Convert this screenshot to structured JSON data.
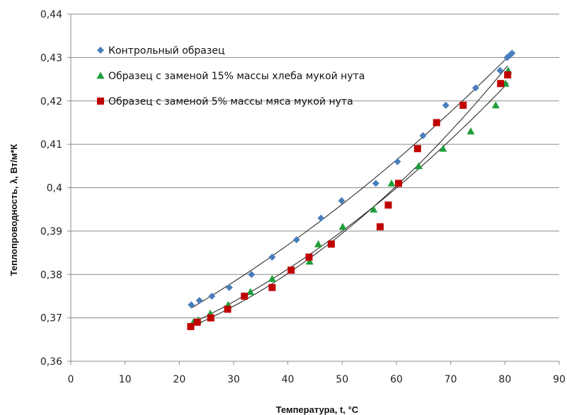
{
  "chart_data": {
    "type": "scatter",
    "title": "",
    "xlabel": "Температура, t, °C",
    "ylabel": "Теплопроводность, λ, Вт/м*К",
    "xlim": [
      0,
      90
    ],
    "ylim": [
      0.36,
      0.44
    ],
    "x_ticks": [
      0,
      10,
      20,
      30,
      40,
      50,
      60,
      70,
      80,
      90
    ],
    "x_tick_labels": [
      "0",
      "10",
      "20",
      "30",
      "40",
      "50",
      "60",
      "70",
      "80",
      "90"
    ],
    "y_ticks": [
      0.36,
      0.37,
      0.38,
      0.39,
      0.4,
      0.41,
      0.42,
      0.43,
      0.44
    ],
    "y_tick_labels": [
      "0,36",
      "0,37",
      "0,38",
      "0,39",
      "0,4",
      "0,41",
      "0,42",
      "0,43",
      "0,44"
    ],
    "grid": "horizontal",
    "legend_position": "top-left",
    "series": [
      {
        "name": "Контрольный образец",
        "marker": "diamond",
        "color": "#4a7ebb",
        "points": [
          [
            22.2,
            0.373
          ],
          [
            23.7,
            0.374
          ],
          [
            26,
            0.375
          ],
          [
            29.2,
            0.377
          ],
          [
            33.3,
            0.38
          ],
          [
            37.1,
            0.384
          ],
          [
            41.6,
            0.388
          ],
          [
            46.1,
            0.393
          ],
          [
            49.9,
            0.397
          ],
          [
            56.2,
            0.401
          ],
          [
            60.2,
            0.406
          ],
          [
            64.9,
            0.412
          ],
          [
            69.1,
            0.419
          ],
          [
            74.6,
            0.423
          ],
          [
            79.1,
            0.427
          ],
          [
            80.4,
            0.43
          ],
          [
            80.9,
            0.4305
          ],
          [
            81.3,
            0.431
          ]
        ]
      },
      {
        "name": "Образец с заменой 15% массы хлеба мукой нута",
        "marker": "triangle",
        "color": "#1e9e3a",
        "points": [
          [
            22.6,
            0.369
          ],
          [
            23.5,
            0.3695
          ],
          [
            25.7,
            0.371
          ],
          [
            29,
            0.373
          ],
          [
            33.1,
            0.376
          ],
          [
            37.1,
            0.379
          ],
          [
            40.6,
            0.381
          ],
          [
            44,
            0.383
          ],
          [
            45.6,
            0.387
          ],
          [
            50.1,
            0.391
          ],
          [
            55.8,
            0.395
          ],
          [
            59.1,
            0.401
          ],
          [
            64.1,
            0.405
          ],
          [
            68.6,
            0.409
          ],
          [
            73.7,
            0.413
          ],
          [
            78.3,
            0.419
          ],
          [
            80.1,
            0.424
          ],
          [
            80.6,
            0.427
          ]
        ]
      },
      {
        "name": "Образец с заменой 5% массы мяса мукой нута",
        "marker": "square",
        "color": "#c00000",
        "points": [
          [
            22.1,
            0.368
          ],
          [
            23.3,
            0.369
          ],
          [
            25.8,
            0.37
          ],
          [
            28.9,
            0.372
          ],
          [
            32,
            0.375
          ],
          [
            37.1,
            0.377
          ],
          [
            40.6,
            0.381
          ],
          [
            43.9,
            0.384
          ],
          [
            48,
            0.387
          ],
          [
            57,
            0.391
          ],
          [
            58.5,
            0.396
          ],
          [
            60.4,
            0.401
          ],
          [
            63.9,
            0.409
          ],
          [
            67.4,
            0.415
          ],
          [
            72.3,
            0.419
          ],
          [
            79.2,
            0.424
          ],
          [
            80.5,
            0.426
          ]
        ]
      }
    ]
  }
}
